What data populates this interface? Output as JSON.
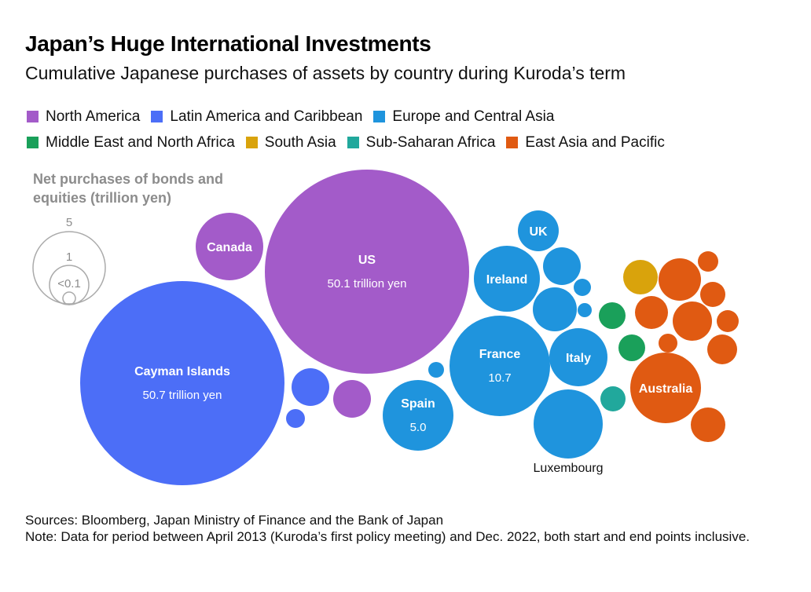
{
  "title": "Japan’s Huge International Investments",
  "subtitle": "Cumulative Japanese purchases of assets by country during Kuroda’s term",
  "colors": {
    "North America": "#a35bc9",
    "Latin America and Caribbean": "#4c6ef7",
    "Europe and Central Asia": "#1f94dd",
    "Middle East and North Africa": "#1aa05a",
    "South Asia": "#d9a30c",
    "Sub-Saharan Africa": "#21a89c",
    "East Asia and Pacific": "#e05a12"
  },
  "legend": {
    "row1": [
      "North America",
      "Latin America and Caribbean",
      "Europe and Central Asia"
    ],
    "row2": [
      "Middle East and North Africa",
      "South Asia",
      "Sub-Saharan Africa",
      "East Asia and Pacific"
    ]
  },
  "size_key": {
    "title_line1": "Net purchases of bonds and",
    "title_line2": "equities (trillion yen)",
    "labels": [
      "5",
      "1",
      "<0.1"
    ]
  },
  "chart_data": {
    "type": "bubble",
    "value_unit": "trillion yen",
    "bubbles": [
      {
        "region": "Latin America and Caribbean",
        "label": "Cayman Islands",
        "value_label": "50.7 trillion yen",
        "value": 50.7
      },
      {
        "region": "North America",
        "label": "US",
        "value_label": "50.1 trillion yen",
        "value": 50.1
      },
      {
        "region": "North America",
        "label": "Canada",
        "value": 5.0
      },
      {
        "region": "Latin America and Caribbean",
        "label": "",
        "value": 1.0
      },
      {
        "region": "Latin America and Caribbean",
        "label": "",
        "value": 0.2
      },
      {
        "region": "North America",
        "label": "",
        "value": 1.0
      },
      {
        "region": "Europe and Central Asia",
        "label": "France",
        "value_label": "10.7",
        "value": 10.7
      },
      {
        "region": "Europe and Central Asia",
        "label": "Spain",
        "value_label": "5.0",
        "value": 5.0
      },
      {
        "region": "Europe and Central Asia",
        "label": "Ireland",
        "value": 5.0
      },
      {
        "region": "Europe and Central Asia",
        "label": "UK",
        "value": 1.5
      },
      {
        "region": "Europe and Central Asia",
        "label": "Italy",
        "value": 3.0
      },
      {
        "region": "Europe and Central Asia",
        "label": "Luxembourg",
        "value": 5.6
      },
      {
        "region": "Europe and Central Asia",
        "label": "",
        "value": 1.2
      },
      {
        "region": "Europe and Central Asia",
        "label": "",
        "value": 1.6
      },
      {
        "region": "Europe and Central Asia",
        "label": "",
        "value": 0.2
      },
      {
        "region": "Europe and Central Asia",
        "label": "",
        "value": 0.1
      },
      {
        "region": "Europe and Central Asia",
        "label": "",
        "value": 0.1
      },
      {
        "region": "Middle East and North Africa",
        "label": "",
        "value": 0.4
      },
      {
        "region": "Middle East and North Africa",
        "label": "",
        "value": 0.4
      },
      {
        "region": "Sub-Saharan Africa",
        "label": "",
        "value": 0.4
      },
      {
        "region": "South Asia",
        "label": "",
        "value": 0.9
      },
      {
        "region": "East Asia and Pacific",
        "label": "Australia",
        "value": 3.0
      },
      {
        "region": "East Asia and Pacific",
        "label": "",
        "value": 1.3
      },
      {
        "region": "East Asia and Pacific",
        "label": "",
        "value": 1.1
      },
      {
        "region": "East Asia and Pacific",
        "label": "",
        "value": 0.9
      },
      {
        "region": "East Asia and Pacific",
        "label": "",
        "value": 0.6
      },
      {
        "region": "East Asia and Pacific",
        "label": "",
        "value": 0.5
      },
      {
        "region": "East Asia and Pacific",
        "label": "",
        "value": 0.4
      },
      {
        "region": "East Asia and Pacific",
        "label": "",
        "value": 0.3
      },
      {
        "region": "East Asia and Pacific",
        "label": "",
        "value": 0.2
      },
      {
        "region": "East Asia and Pacific",
        "label": "",
        "value": 0.8
      }
    ]
  },
  "sources": "Sources: Bloomberg, Japan Ministry of Finance and the Bank of Japan",
  "note": "Note: Data for period between April 2013 (Kuroda’s first policy meeting) and Dec. 2022, both start and end points inclusive."
}
